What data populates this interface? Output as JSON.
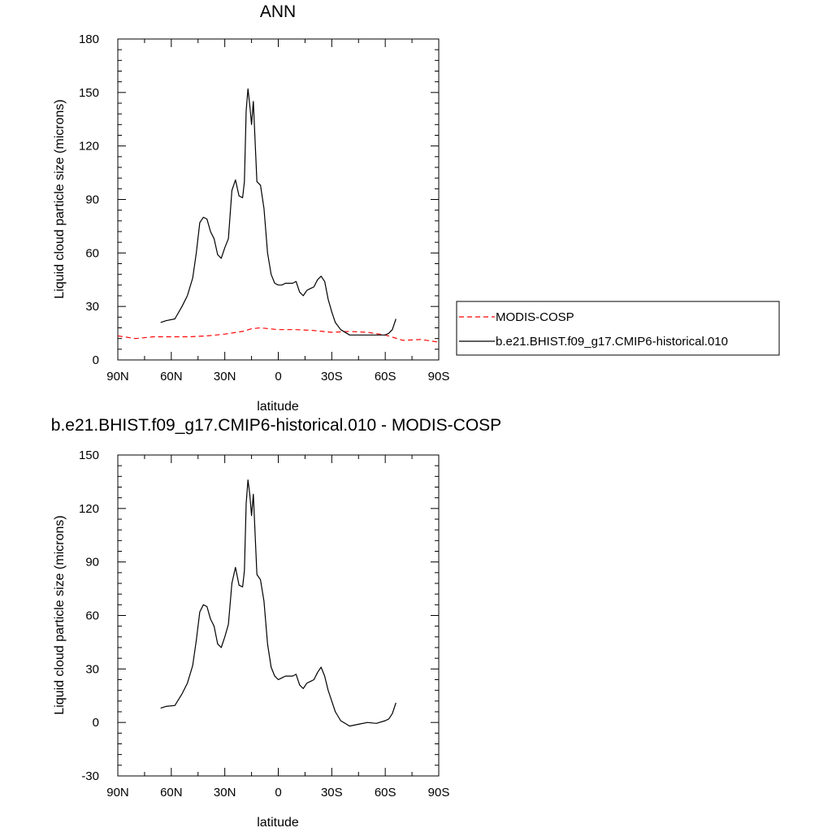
{
  "chart_data": [
    {
      "type": "line",
      "title": "ANN",
      "xlabel": "latitude",
      "ylabel": "Liquid cloud particle size (microns)",
      "xlim": [
        90,
        -90
      ],
      "ylim": [
        0,
        180
      ],
      "x_ticks": [
        90,
        60,
        30,
        0,
        -30,
        -60,
        -90
      ],
      "x_tick_labels": [
        "90N",
        "60N",
        "30N",
        "0",
        "30S",
        "60S",
        "90S"
      ],
      "y_ticks": [
        0,
        30,
        60,
        90,
        120,
        150,
        180
      ],
      "y_tick_labels": [
        "0",
        "30",
        "60",
        "90",
        "120",
        "150",
        "180"
      ],
      "grid": false,
      "legend": {
        "placement": "right",
        "entries": [
          "MODIS-COSP",
          "b.e21.BHIST.f09_g17.CMIP6-historical.010"
        ]
      },
      "series": [
        {
          "name": "MODIS-COSP",
          "color": "#ff0000",
          "dash": "dashed",
          "x": [
            90,
            80,
            70,
            60,
            50,
            40,
            30,
            20,
            15,
            10,
            5,
            0,
            -5,
            -10,
            -20,
            -30,
            -40,
            -50,
            -60,
            -70,
            -80,
            -90
          ],
          "y": [
            13.5,
            12,
            13,
            13,
            13,
            13.5,
            14.5,
            16,
            17.5,
            18,
            17.5,
            17,
            17,
            17,
            16.5,
            15.5,
            16,
            15.5,
            14,
            11,
            11.5,
            10
          ]
        },
        {
          "name": "b.e21.BHIST.f09_g17.CMIP6-historical.010",
          "color": "#000000",
          "dash": "solid",
          "x": [
            66,
            63,
            58,
            54,
            51,
            48,
            46,
            44,
            42,
            40,
            38,
            36,
            34,
            32,
            30,
            28,
            26,
            24,
            22,
            20,
            19,
            18,
            17,
            16,
            15,
            14,
            12,
            10,
            8,
            6,
            4,
            2,
            0,
            -2,
            -4,
            -6,
            -8,
            -10,
            -12,
            -14,
            -16,
            -18,
            -20,
            -22,
            -24,
            -26,
            -28,
            -30,
            -32,
            -35,
            -40,
            -45,
            -50,
            -55,
            -60,
            -62,
            -64,
            -66
          ],
          "y": [
            21,
            22,
            23,
            30,
            36,
            46,
            60,
            77,
            80,
            79,
            72,
            68,
            59,
            57,
            63,
            68,
            95,
            101,
            92,
            91,
            100,
            140,
            152,
            143,
            132,
            145,
            100,
            98,
            85,
            60,
            48,
            43,
            42,
            42,
            43,
            43,
            43,
            44,
            38,
            36,
            39,
            40,
            41,
            45,
            47,
            44,
            34,
            27,
            21,
            17,
            14,
            14,
            14,
            14,
            14,
            15,
            17,
            23
          ]
        }
      ]
    },
    {
      "type": "line",
      "title": "b.e21.BHIST.f09_g17.CMIP6-historical.010 - MODIS-COSP",
      "xlabel": "latitude",
      "ylabel": "Liquid cloud particle size (microns)",
      "xlim": [
        90,
        -90
      ],
      "ylim": [
        -30,
        150
      ],
      "x_ticks": [
        90,
        60,
        30,
        0,
        -30,
        -60,
        -90
      ],
      "x_tick_labels": [
        "90N",
        "60N",
        "30N",
        "0",
        "30S",
        "60S",
        "90S"
      ],
      "y_ticks": [
        -30,
        0,
        30,
        60,
        90,
        120,
        150
      ],
      "y_tick_labels": [
        "-30",
        "0",
        "30",
        "60",
        "90",
        "120",
        "150"
      ],
      "grid": false,
      "series": [
        {
          "color": "#000000",
          "dash": "solid",
          "x": [
            66,
            63,
            58,
            54,
            51,
            48,
            46,
            44,
            42,
            40,
            38,
            36,
            34,
            32,
            30,
            28,
            26,
            24,
            22,
            20,
            19,
            18,
            17,
            16,
            15,
            14,
            12,
            10,
            8,
            6,
            4,
            2,
            0,
            -2,
            -4,
            -6,
            -8,
            -10,
            -12,
            -14,
            -16,
            -18,
            -20,
            -22,
            -24,
            -26,
            -28,
            -30,
            -32,
            -35,
            -40,
            -45,
            -50,
            -55,
            -60,
            -62,
            -64,
            -66
          ],
          "y": [
            8,
            9,
            9.5,
            16,
            22,
            32,
            46,
            62,
            66,
            65,
            58,
            54,
            44,
            42,
            48,
            55,
            78,
            87,
            77,
            76,
            85,
            123,
            136,
            128,
            116,
            128,
            83,
            80,
            68,
            44,
            31,
            26,
            24,
            25,
            26,
            26,
            26,
            27,
            21,
            19,
            22,
            23,
            24,
            28,
            31,
            26,
            18,
            12,
            6,
            1,
            -2,
            -1,
            0,
            -0.5,
            1,
            2,
            5,
            11
          ]
        }
      ]
    }
  ]
}
